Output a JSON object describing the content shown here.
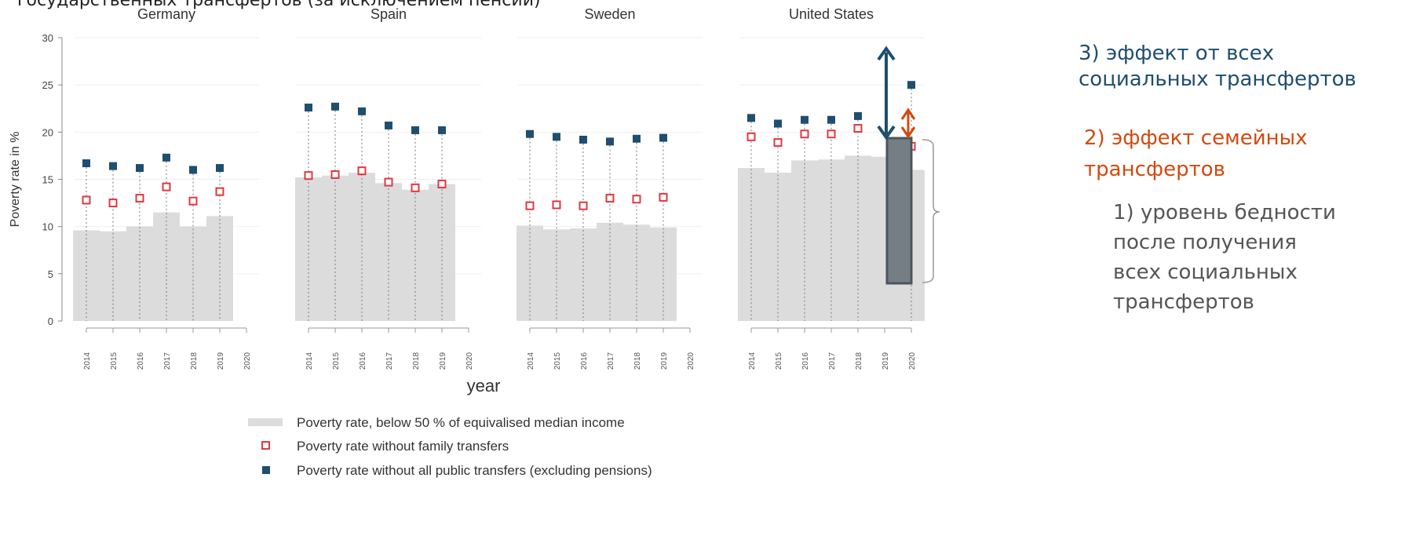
{
  "partial_title": "государственных трансфертов (за исключением пенсий)",
  "colors": {
    "bar": "#dcdcdc",
    "marker_family": "#e0393e",
    "marker_all": "#1f4e6e",
    "annotation3": "#1f4e6e",
    "annotation2": "#d14a10",
    "annotation1": "#555555",
    "highlight_bar": "#757d85"
  },
  "annotations": {
    "a3_line1": "3) эффект от всех",
    "a3_line2": "социальных трансфертов",
    "a2_line1": "2) эффект семейных",
    "a2_line2": "трансфертов",
    "a1_lines": [
      "1) уровень бедности",
      "после получения",
      "всех социальных",
      "трансфертов"
    ]
  },
  "legend": [
    {
      "label": "Poverty rate, below 50 % of equivalised median income",
      "kind": "bar"
    },
    {
      "label": "Poverty rate without family transfers",
      "kind": "hollow-square"
    },
    {
      "label": "Poverty rate without all public transfers (excluding pensions)",
      "kind": "filled-square"
    }
  ],
  "chart_data": {
    "type": "bar",
    "ylabel": "Poverty rate in %",
    "xlabel": "year",
    "ylim": [
      0,
      30
    ],
    "yticks": [
      0,
      5,
      10,
      15,
      20,
      25,
      30
    ],
    "xticks": [
      "2014",
      "2015",
      "2016",
      "2017",
      "2018",
      "2019",
      "2020"
    ],
    "grid": true,
    "legend_position": "bottom",
    "panels": [
      {
        "title": "Germany",
        "poverty_rate": [
          9.6,
          9.5,
          10.0,
          11.5,
          10.0,
          11.1,
          null
        ],
        "without_family_transfers": [
          12.8,
          12.5,
          13.0,
          14.2,
          12.7,
          13.7,
          null
        ],
        "without_all_public_transfers": [
          16.7,
          16.4,
          16.2,
          17.3,
          16.0,
          16.2,
          null
        ]
      },
      {
        "title": "Spain",
        "poverty_rate": [
          15.2,
          15.4,
          15.7,
          14.6,
          13.9,
          14.5,
          null
        ],
        "without_family_transfers": [
          15.4,
          15.5,
          15.9,
          14.7,
          14.1,
          14.5,
          null
        ],
        "without_all_public_transfers": [
          22.6,
          22.7,
          22.2,
          20.7,
          20.2,
          20.2,
          null
        ]
      },
      {
        "title": "Sweden",
        "poverty_rate": [
          10.1,
          9.7,
          9.8,
          10.4,
          10.2,
          9.9,
          null
        ],
        "without_family_transfers": [
          12.2,
          12.3,
          12.2,
          13.0,
          12.9,
          13.1,
          null
        ],
        "without_all_public_transfers": [
          19.8,
          19.5,
          19.2,
          19.0,
          19.3,
          19.4,
          null
        ]
      },
      {
        "title": "United States",
        "poverty_rate": [
          16.2,
          15.7,
          17.0,
          17.1,
          17.5,
          17.4,
          16.0
        ],
        "without_family_transfers": [
          19.5,
          18.9,
          19.8,
          19.8,
          20.4,
          null,
          18.5
        ],
        "without_all_public_transfers": [
          21.5,
          20.9,
          21.3,
          21.3,
          21.7,
          null,
          25.0
        ]
      }
    ]
  }
}
